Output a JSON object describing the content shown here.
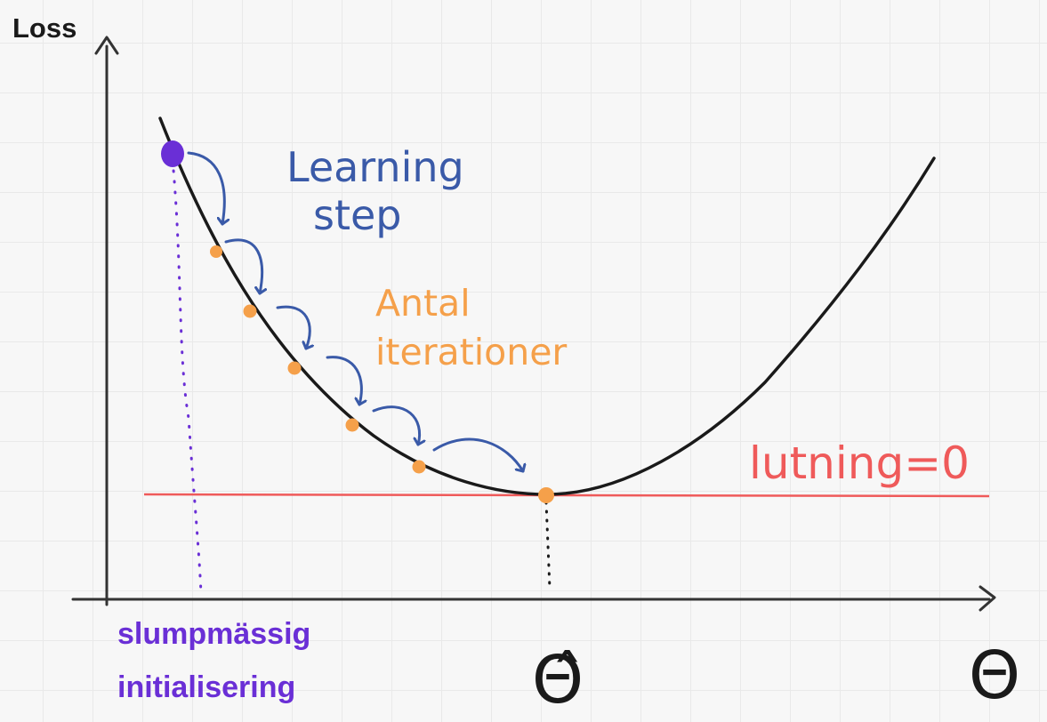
{
  "axes": {
    "y_label": "Loss",
    "x_label": "Θ",
    "optimum_label": "Θ̂"
  },
  "annotations": {
    "learning_step": [
      "Learning",
      "step"
    ],
    "iterations": [
      "Antal",
      "iterationer"
    ],
    "slope_zero": "lutning=0",
    "random_init": [
      "slumpmässig",
      "initialisering"
    ]
  },
  "colors": {
    "curve": "#1a1a1a",
    "steps": "#3a5aa8",
    "iterations": "#f5a04a",
    "slope_line": "#ef5a5a",
    "init": "#6a2fd6",
    "guide": "#1a1a1a"
  }
}
